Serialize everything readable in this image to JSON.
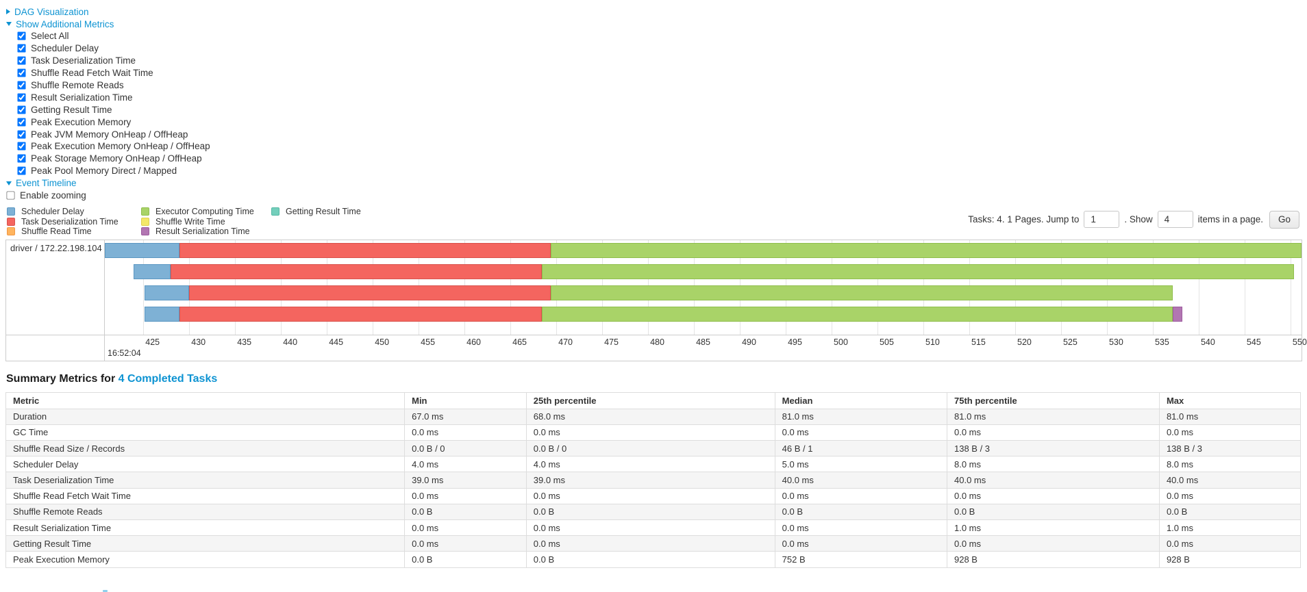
{
  "colors": {
    "link": "#0d93d2",
    "segment_types": {
      "scheduler_delay": {
        "label": "Scheduler Delay",
        "fill": "#7eb1d5",
        "border": "#5b97c2"
      },
      "task_deserialization": {
        "label": "Task Deserialization Time",
        "fill": "#f4655f",
        "border": "#d8524c"
      },
      "shuffle_read": {
        "label": "Shuffle Read Time",
        "fill": "#ffb45e",
        "border": "#f09743"
      },
      "executor_computing": {
        "label": "Executor Computing Time",
        "fill": "#a9d368",
        "border": "#8fbe4c"
      },
      "shuffle_write": {
        "label": "Shuffle Write Time",
        "fill": "#f3e869",
        "border": "#decf52"
      },
      "result_serialization": {
        "label": "Result Serialization Time",
        "fill": "#b276b2",
        "border": "#9c5b9e"
      },
      "getting_result": {
        "label": "Getting Result Time",
        "fill": "#74cfbc",
        "border": "#53b8a3"
      }
    }
  },
  "sections": {
    "dag_label": "DAG Visualization",
    "metrics_label": "Show Additional Metrics",
    "timeline_label": "Event Timeline",
    "enable_zooming_label": "Enable zooming"
  },
  "metric_options": [
    {
      "label": "Select All",
      "checked": true
    },
    {
      "label": "Scheduler Delay",
      "checked": true
    },
    {
      "label": "Task Deserialization Time",
      "checked": true
    },
    {
      "label": "Shuffle Read Fetch Wait Time",
      "checked": true
    },
    {
      "label": "Shuffle Remote Reads",
      "checked": true
    },
    {
      "label": "Result Serialization Time",
      "checked": true
    },
    {
      "label": "Getting Result Time",
      "checked": true
    },
    {
      "label": "Peak Execution Memory",
      "checked": true
    },
    {
      "label": "Peak JVM Memory OnHeap / OffHeap",
      "checked": true
    },
    {
      "label": "Peak Execution Memory OnHeap / OffHeap",
      "checked": true
    },
    {
      "label": "Peak Storage Memory OnHeap / OffHeap",
      "checked": true
    },
    {
      "label": "Peak Pool Memory Direct / Mapped",
      "checked": true
    }
  ],
  "pagination": {
    "summary_text": "Tasks: 4. 1 Pages. Jump to",
    "jump_value": "1",
    "show_label": ". Show",
    "show_value": "4",
    "suffix_text": "items in a page.",
    "go_label": "Go"
  },
  "chart_data": {
    "type": "bar",
    "subtype": "horizontal-stacked-task-timeline",
    "row_label": "driver / 172.22.198.104",
    "legend_columns": [
      [
        "scheduler_delay",
        "task_deserialization",
        "shuffle_read"
      ],
      [
        "executor_computing",
        "shuffle_write",
        "result_serialization"
      ],
      [
        "getting_result"
      ]
    ],
    "axis": {
      "unit": "ms",
      "domain": [
        420.8,
        551.2
      ],
      "tick_start": 425,
      "tick_end": 550,
      "tick_step": 5,
      "time_label": "16:52:04"
    },
    "tasks": [
      {
        "segments": [
          [
            "scheduler_delay",
            420.8,
            428.9
          ],
          [
            "task_deserialization",
            428.9,
            469.4
          ],
          [
            "executor_computing",
            469.4,
            551.2
          ]
        ]
      },
      {
        "segments": [
          [
            "scheduler_delay",
            423.9,
            428.0
          ],
          [
            "task_deserialization",
            428.0,
            468.4
          ],
          [
            "executor_computing",
            468.4,
            550.4
          ]
        ]
      },
      {
        "segments": [
          [
            "scheduler_delay",
            425.1,
            430.0
          ],
          [
            "task_deserialization",
            430.0,
            469.4
          ],
          [
            "executor_computing",
            469.4,
            537.2
          ]
        ]
      },
      {
        "segments": [
          [
            "scheduler_delay",
            425.1,
            428.9
          ],
          [
            "task_deserialization",
            428.9,
            468.4
          ],
          [
            "executor_computing",
            468.4,
            537.2
          ],
          [
            "result_serialization",
            537.2,
            538.2
          ]
        ]
      }
    ]
  },
  "summary": {
    "title_prefix": "Summary Metrics for ",
    "title_link": "4 Completed Tasks",
    "columns": [
      "Metric",
      "Min",
      "25th percentile",
      "Median",
      "75th percentile",
      "Max"
    ],
    "rows": [
      [
        "Duration",
        "67.0 ms",
        "68.0 ms",
        "81.0 ms",
        "81.0 ms",
        "81.0 ms"
      ],
      [
        "GC Time",
        "0.0 ms",
        "0.0 ms",
        "0.0 ms",
        "0.0 ms",
        "0.0 ms"
      ],
      [
        "Shuffle Read Size / Records",
        "0.0 B / 0",
        "0.0 B / 0",
        "46 B / 1",
        "138 B / 3",
        "138 B / 3"
      ],
      [
        "Scheduler Delay",
        "4.0 ms",
        "4.0 ms",
        "5.0 ms",
        "8.0 ms",
        "8.0 ms"
      ],
      [
        "Task Deserialization Time",
        "39.0 ms",
        "39.0 ms",
        "40.0 ms",
        "40.0 ms",
        "40.0 ms"
      ],
      [
        "Shuffle Read Fetch Wait Time",
        "0.0 ms",
        "0.0 ms",
        "0.0 ms",
        "0.0 ms",
        "0.0 ms"
      ],
      [
        "Shuffle Remote Reads",
        "0.0 B",
        "0.0 B",
        "0.0 B",
        "0.0 B",
        "0.0 B"
      ],
      [
        "Result Serialization Time",
        "0.0 ms",
        "0.0 ms",
        "0.0 ms",
        "1.0 ms",
        "1.0 ms"
      ],
      [
        "Getting Result Time",
        "0.0 ms",
        "0.0 ms",
        "0.0 ms",
        "0.0 ms",
        "0.0 ms"
      ],
      [
        "Peak Execution Memory",
        "0.0 B",
        "0.0 B",
        "752 B",
        "928 B",
        "928 B"
      ]
    ]
  }
}
